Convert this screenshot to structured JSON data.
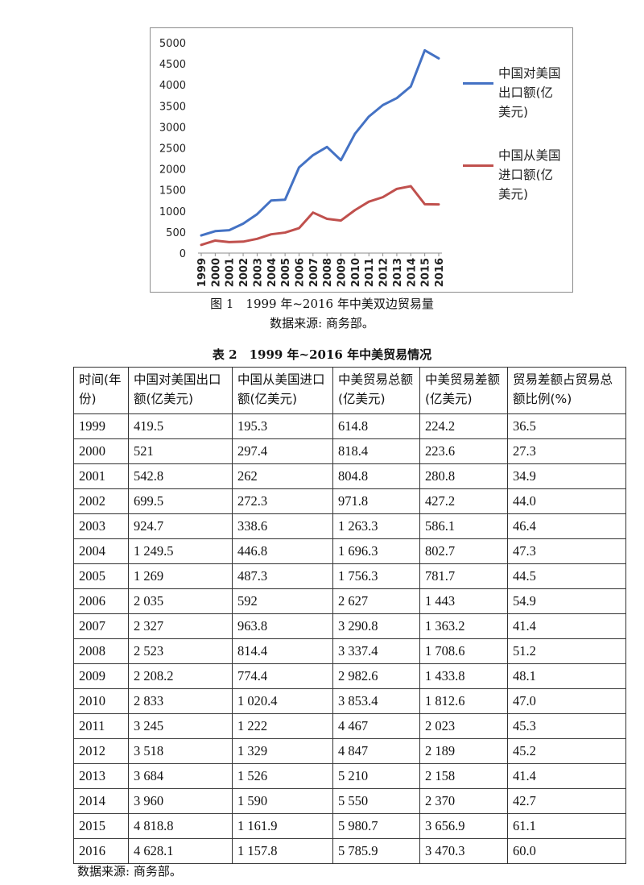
{
  "chart_data": {
    "type": "line",
    "x": [
      "1999",
      "2000",
      "2001",
      "2002",
      "2003",
      "2004",
      "2005",
      "2006",
      "2007",
      "2008",
      "2009",
      "2010",
      "2011",
      "2012",
      "2013",
      "2014",
      "2015",
      "2016"
    ],
    "ylim": [
      0,
      5000
    ],
    "yticks": [
      "5000",
      "4500",
      "4000",
      "3500",
      "3000",
      "2500",
      "2000",
      "1500",
      "1000",
      "500",
      "0"
    ],
    "series": [
      {
        "name": "中国对美国出口额(亿美元)",
        "color": "#4472C4",
        "values": [
          419.5,
          521,
          542.8,
          699.5,
          924.7,
          1249.5,
          1269,
          2035,
          2327,
          2523,
          2208.2,
          2833,
          3245,
          3518,
          3684,
          3960,
          4818.8,
          4628.1
        ]
      },
      {
        "name": "中国从美国进口额(亿美元)",
        "color": "#C0504D",
        "values": [
          195.3,
          297.4,
          262,
          272.3,
          338.6,
          446.8,
          487.3,
          592,
          963.8,
          814.4,
          774.4,
          1020.4,
          1222,
          1329,
          1526,
          1590,
          1161.9,
          1157.8
        ]
      }
    ],
    "grid": false,
    "legend": "right"
  },
  "legend": {
    "export": [
      "中国对美国",
      "出口额(亿",
      "美元)"
    ],
    "import": [
      "中国从美国",
      "进口额(亿",
      "美元)"
    ]
  },
  "figure_caption": "图 1　1999 年~2016 年中美双边贸易量",
  "figure_source": "数据来源: 商务部。",
  "table_caption": "表 2　1999 年~2016 年中美贸易情况",
  "table": {
    "headers": [
      "时间(年份)",
      "中国对美国出口额(亿美元)",
      "中国从美国进口额(亿美元)",
      "中美贸易总额(亿美元)",
      "中美贸易差额(亿美元)",
      "贸易差额占贸易总额比例(%)"
    ],
    "rows": [
      [
        "1999",
        "419.5",
        "195.3",
        "614.8",
        "224.2",
        "36.5"
      ],
      [
        "2000",
        "521",
        "297.4",
        "818.4",
        "223.6",
        "27.3"
      ],
      [
        "2001",
        "542.8",
        "262",
        "804.8",
        "280.8",
        "34.9"
      ],
      [
        "2002",
        "699.5",
        "272.3",
        "971.8",
        "427.2",
        "44.0"
      ],
      [
        "2003",
        "924.7",
        "338.6",
        "1 263.3",
        "586.1",
        "46.4"
      ],
      [
        "2004",
        "1 249.5",
        "446.8",
        "1 696.3",
        "802.7",
        "47.3"
      ],
      [
        "2005",
        "1 269",
        "487.3",
        "1 756.3",
        "781.7",
        "44.5"
      ],
      [
        "2006",
        "2 035",
        "592",
        "2 627",
        "1 443",
        "54.9"
      ],
      [
        "2007",
        "2 327",
        "963.8",
        "3 290.8",
        "1 363.2",
        "41.4"
      ],
      [
        "2008",
        "2 523",
        "814.4",
        "3 337.4",
        "1 708.6",
        "51.2"
      ],
      [
        "2009",
        "2 208.2",
        "774.4",
        "2 982.6",
        "1 433.8",
        "48.1"
      ],
      [
        "2010",
        "2 833",
        "1 020.4",
        "3 853.4",
        "1 812.6",
        "47.0"
      ],
      [
        "2011",
        "3 245",
        "1 222",
        "4 467",
        "2 023",
        "45.3"
      ],
      [
        "2012",
        "3 518",
        "1 329",
        "4 847",
        "2 189",
        "45.2"
      ],
      [
        "2013",
        "3 684",
        "1 526",
        "5 210",
        "2 158",
        "41.4"
      ],
      [
        "2014",
        "3 960",
        "1 590",
        "5 550",
        "2 370",
        "42.7"
      ],
      [
        "2015",
        "4 818.8",
        "1 161.9",
        "5 980.7",
        "3 656.9",
        "61.1"
      ],
      [
        "2016",
        "4 628.1",
        "1 157.8",
        "5 785.9",
        "3 470.3",
        "60.0"
      ]
    ]
  },
  "table_source": "数据来源: 商务部。"
}
